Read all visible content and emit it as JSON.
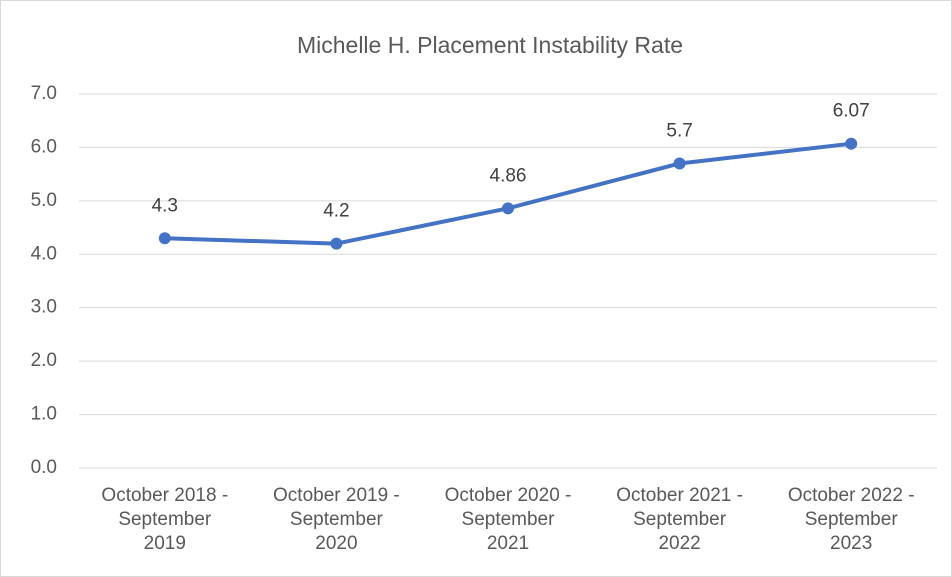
{
  "chart_data": {
    "type": "line",
    "title": "Michelle H. Placement Instability Rate",
    "categories": [
      "October 2018 -\nSeptember\n2019",
      "October 2019 -\nSeptember\n2020",
      "October 2020 -\nSeptember\n2021",
      "October 2021 -\nSeptember\n2022",
      "October 2022 -\nSeptember\n2023"
    ],
    "values": [
      4.3,
      4.2,
      4.86,
      5.7,
      6.07
    ],
    "color": "#4472c4",
    "ylim": [
      0,
      7
    ],
    "yticks": [
      {
        "value": 0,
        "label": "0.0"
      },
      {
        "value": 1,
        "label": "1.0"
      },
      {
        "value": 2,
        "label": "2.0"
      },
      {
        "value": 3,
        "label": "3.0"
      },
      {
        "value": 4,
        "label": "4.0"
      },
      {
        "value": 5,
        "label": "5.0"
      },
      {
        "value": 6,
        "label": "6.0"
      },
      {
        "value": 7,
        "label": "7.0"
      }
    ],
    "grid": true
  }
}
